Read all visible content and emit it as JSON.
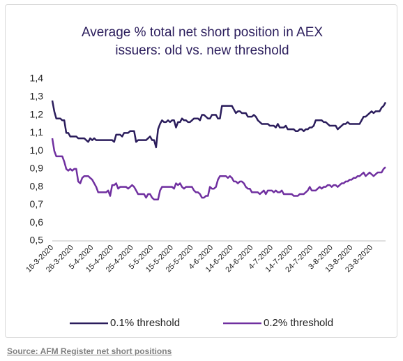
{
  "chart_data": {
    "type": "line",
    "title": "Average % total net short position in AEX issuers: old vs. new threshold",
    "source": "Source: AFM Register net short positions",
    "categories": [
      "16-3-2020",
      null,
      null,
      null,
      null,
      null,
      null,
      null,
      null,
      null,
      "26-3-2020",
      null,
      null,
      null,
      null,
      null,
      null,
      null,
      null,
      null,
      "5-4-2020",
      null,
      null,
      null,
      null,
      null,
      null,
      null,
      null,
      null,
      "15-4-2020",
      null,
      null,
      null,
      null,
      null,
      null,
      null,
      null,
      null,
      "25-4-2020",
      null,
      null,
      null,
      null,
      null,
      null,
      null,
      null,
      null,
      "5-5-2020",
      null,
      null,
      null,
      null,
      null,
      null,
      null,
      null,
      null,
      "15-5-2020",
      null,
      null,
      null,
      null,
      null,
      null,
      null,
      null,
      null,
      "25-5-2020",
      null,
      null,
      null,
      null,
      null,
      null,
      null,
      null,
      null,
      "4-6-2020",
      null,
      null,
      null,
      null,
      null,
      null,
      null,
      null,
      null,
      "14-6-2020",
      null,
      null,
      null,
      null,
      null,
      null,
      null,
      null,
      null,
      "24-6-2020",
      null,
      null,
      null,
      null,
      null,
      null,
      null,
      null,
      null,
      "4-7-2020",
      null,
      null,
      null,
      null,
      null,
      null,
      null,
      null,
      null,
      "14-7-2020",
      null,
      null,
      null,
      null,
      null,
      null,
      null,
      null,
      null,
      "24-7-2020",
      null,
      null,
      null,
      null,
      null,
      null,
      null,
      null,
      null,
      "3-8-2020",
      null,
      null,
      null,
      null,
      null,
      null,
      null,
      null,
      null,
      "13-8-2020",
      null,
      null,
      null,
      null,
      null,
      null,
      null,
      null,
      null,
      "23-8-2020",
      null,
      null,
      null,
      null,
      null,
      null,
      null
    ],
    "series": [
      {
        "name": "0.1% threshold",
        "color": "#2b1d5c",
        "values": [
          1.28,
          1.22,
          1.18,
          1.18,
          1.18,
          1.17,
          1.17,
          1.1,
          1.1,
          1.08,
          1.08,
          1.08,
          1.08,
          1.07,
          1.07,
          1.07,
          1.07,
          1.06,
          1.05,
          1.07,
          1.06,
          1.07,
          1.06,
          1.06,
          1.06,
          1.06,
          1.06,
          1.06,
          1.06,
          1.06,
          1.06,
          1.05,
          1.09,
          1.09,
          1.09,
          1.08,
          1.1,
          1.1,
          1.1,
          1.11,
          1.11,
          1.11,
          1.05,
          1.06,
          1.06,
          1.06,
          1.06,
          1.06,
          1.07,
          1.08,
          1.06,
          1.06,
          1.02,
          1.12,
          1.15,
          1.17,
          1.16,
          1.16,
          1.17,
          1.16,
          1.17,
          1.17,
          1.13,
          1.16,
          1.16,
          1.18,
          1.17,
          1.17,
          1.16,
          1.16,
          1.17,
          1.18,
          1.18,
          1.18,
          1.17,
          1.2,
          1.2,
          1.19,
          1.18,
          1.18,
          1.2,
          1.2,
          1.2,
          1.18,
          1.18,
          1.25,
          1.25,
          1.25,
          1.25,
          1.25,
          1.25,
          1.23,
          1.21,
          1.22,
          1.22,
          1.21,
          1.21,
          1.21,
          1.19,
          1.19,
          1.19,
          1.2,
          1.19,
          1.17,
          1.16,
          1.15,
          1.15,
          1.15,
          1.15,
          1.14,
          1.14,
          1.14,
          1.13,
          1.15,
          1.13,
          1.13,
          1.13,
          1.14,
          1.12,
          1.12,
          1.12,
          1.12,
          1.11,
          1.11,
          1.12,
          1.12,
          1.11,
          1.12,
          1.12,
          1.13,
          1.13,
          1.14,
          1.17,
          1.17,
          1.17,
          1.17,
          1.16,
          1.16,
          1.15,
          1.14,
          1.14,
          1.14,
          1.14,
          1.12,
          1.13,
          1.14,
          1.15,
          1.15,
          1.16,
          1.15,
          1.15,
          1.15,
          1.15,
          1.15,
          1.15,
          1.17,
          1.19,
          1.19,
          1.2,
          1.21,
          1.22,
          1.21,
          1.22,
          1.22,
          1.22,
          1.24,
          1.25,
          1.27
        ]
      },
      {
        "name": "0.2% threshold",
        "color": "#7030a0",
        "values": [
          1.07,
          1.0,
          0.97,
          0.97,
          0.97,
          0.97,
          0.94,
          0.9,
          0.89,
          0.9,
          0.89,
          0.9,
          0.9,
          0.83,
          0.82,
          0.85,
          0.86,
          0.86,
          0.86,
          0.85,
          0.84,
          0.82,
          0.8,
          0.77,
          0.77,
          0.77,
          0.77,
          0.77,
          0.78,
          0.75,
          0.81,
          0.81,
          0.82,
          0.79,
          0.8,
          0.8,
          0.8,
          0.8,
          0.79,
          0.8,
          0.81,
          0.8,
          0.78,
          0.76,
          0.76,
          0.76,
          0.76,
          0.74,
          0.76,
          0.76,
          0.74,
          0.73,
          0.73,
          0.73,
          0.78,
          0.8,
          0.8,
          0.8,
          0.8,
          0.8,
          0.8,
          0.79,
          0.82,
          0.81,
          0.82,
          0.8,
          0.79,
          0.8,
          0.8,
          0.8,
          0.8,
          0.78,
          0.77,
          0.77,
          0.76,
          0.74,
          0.74,
          0.75,
          0.75,
          0.8,
          0.79,
          0.79,
          0.8,
          0.84,
          0.86,
          0.86,
          0.86,
          0.86,
          0.85,
          0.86,
          0.85,
          0.83,
          0.83,
          0.82,
          0.83,
          0.83,
          0.82,
          0.8,
          0.79,
          0.79,
          0.77,
          0.77,
          0.77,
          0.77,
          0.76,
          0.77,
          0.78,
          0.76,
          0.78,
          0.78,
          0.78,
          0.77,
          0.78,
          0.77,
          0.77,
          0.78,
          0.76,
          0.76,
          0.76,
          0.76,
          0.76,
          0.75,
          0.75,
          0.75,
          0.76,
          0.76,
          0.76,
          0.77,
          0.78,
          0.8,
          0.78,
          0.78,
          0.78,
          0.79,
          0.8,
          0.79,
          0.8,
          0.8,
          0.81,
          0.81,
          0.8,
          0.81,
          0.81,
          0.8,
          0.81,
          0.82,
          0.82,
          0.83,
          0.83,
          0.84,
          0.84,
          0.85,
          0.85,
          0.86,
          0.86,
          0.87,
          0.88,
          0.86,
          0.87,
          0.88,
          0.87,
          0.86,
          0.87,
          0.88,
          0.88,
          0.88,
          0.9,
          0.91
        ]
      }
    ],
    "ylim": [
      0.5,
      1.4
    ],
    "yticks": [
      {
        "value": 0.5,
        "label": "0,5"
      },
      {
        "value": 0.6,
        "label": "0,6"
      },
      {
        "value": 0.7,
        "label": "0,7"
      },
      {
        "value": 0.8,
        "label": "0,8"
      },
      {
        "value": 0.9,
        "label": "0,9"
      },
      {
        "value": 1.0,
        "label": "1,0"
      },
      {
        "value": 1.1,
        "label": "1,1"
      },
      {
        "value": 1.2,
        "label": "1,2"
      },
      {
        "value": 1.3,
        "label": "1,3"
      },
      {
        "value": 1.4,
        "label": "1,4"
      }
    ],
    "grid": false,
    "legend": "bottom"
  }
}
